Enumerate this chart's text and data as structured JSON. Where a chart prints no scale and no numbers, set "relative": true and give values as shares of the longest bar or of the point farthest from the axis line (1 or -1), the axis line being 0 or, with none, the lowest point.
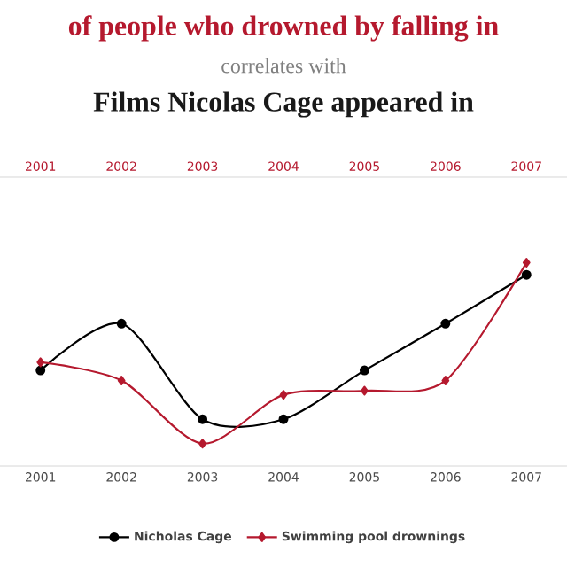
{
  "chart_data": {
    "type": "line",
    "title": "of people who drowned by falling in",
    "subtitle": "correlates with",
    "annotations": [
      "Films Nicolas Cage appeared in"
    ],
    "categories": [
      "2001",
      "2002",
      "2003",
      "2004",
      "2005",
      "2006",
      "2007"
    ],
    "relative": true,
    "legend": "bottom",
    "line_style": "solid",
    "series": [
      {
        "name": "Nicholas Cage",
        "color": "#000000",
        "marker": "circle",
        "values": [
          0.47,
          0.7,
          0.23,
          0.23,
          0.47,
          0.7,
          0.94
        ]
      },
      {
        "name": "Swimming pool drownings",
        "color": "#b5192e",
        "marker": "diamond",
        "values": [
          0.51,
          0.42,
          0.11,
          0.35,
          0.37,
          0.42,
          1.0
        ]
      }
    ]
  }
}
